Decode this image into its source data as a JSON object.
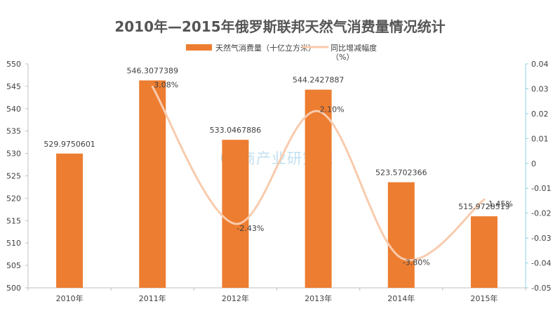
{
  "chart_data": {
    "type": "bar",
    "title": "2010年—2015年俄罗斯联邦天然气消费量情况统计",
    "watermark": "中商产业研究院",
    "categories": [
      "2010年",
      "2011年",
      "2012年",
      "2013年",
      "2014年",
      "2015年"
    ],
    "series": [
      {
        "name": "天然气消费量（十亿立方米）",
        "kind": "bar",
        "axis": "left",
        "color": "#ed7d31",
        "values": [
          529.9750601,
          546.3077389,
          533.0467886,
          544.2427887,
          523.5702366,
          515.9728519
        ],
        "labels": [
          "529.9750601",
          "546.3077389",
          "533.0467886",
          "544.2427887",
          "523.5702366",
          "515.9728519"
        ]
      },
      {
        "name": "同比增减幅度（%）",
        "legend_lines": [
          "同比增减幅度",
          "（%）"
        ],
        "kind": "line",
        "smooth": true,
        "axis": "right",
        "color": "#f8cbad",
        "points": [
          {
            "category": "2011年",
            "value": 0.0308,
            "label": "3.08%"
          },
          {
            "category": "2012年",
            "value": -0.0243,
            "label": "-2.43%"
          },
          {
            "category": "2013年",
            "value": 0.021,
            "label": "2.10%"
          },
          {
            "category": "2014年",
            "value": -0.038,
            "label": "-3.80%"
          },
          {
            "category": "2015年",
            "value": -0.0145,
            "label": "-1.45%"
          }
        ]
      }
    ],
    "yleft": {
      "ylim": [
        500,
        550
      ],
      "ticks": [
        500,
        505,
        510,
        515,
        520,
        525,
        530,
        535,
        540,
        545,
        550
      ],
      "tick_labels": [
        "500",
        "505",
        "510",
        "515",
        "520",
        "525",
        "530",
        "535",
        "540",
        "545",
        "550"
      ]
    },
    "yright": {
      "ylim": [
        -0.05,
        0.04
      ],
      "ticks": [
        -0.05,
        -0.04,
        -0.03,
        -0.02,
        -0.01,
        0,
        0.01,
        0.02,
        0.03,
        0.04
      ],
      "tick_labels": [
        "-0.05",
        "-0.04",
        "-0.03",
        "-0.02",
        "-0.01",
        "0",
        "0.01",
        "0.02",
        "0.03",
        "0.04"
      ]
    },
    "legend_position": "top",
    "grid": false
  }
}
